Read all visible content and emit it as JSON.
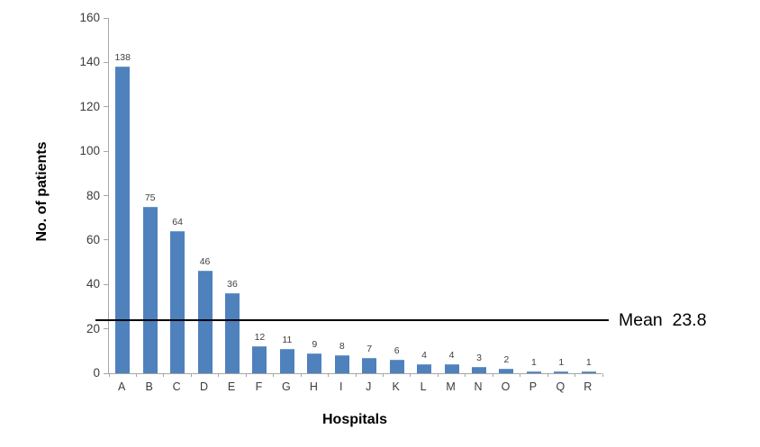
{
  "chart_data": {
    "type": "bar",
    "title": "",
    "xlabel": "Hospitals",
    "ylabel": "No. of patients",
    "categories": [
      "A",
      "B",
      "C",
      "D",
      "E",
      "F",
      "G",
      "H",
      "I",
      "J",
      "K",
      "L",
      "M",
      "N",
      "O",
      "P",
      "Q",
      "R"
    ],
    "values": [
      138,
      75,
      64,
      46,
      36,
      12,
      11,
      9,
      8,
      7,
      6,
      4,
      4,
      3,
      2,
      1,
      1,
      1
    ],
    "ylim": [
      0,
      160
    ],
    "yticks": [
      0,
      20,
      40,
      60,
      80,
      100,
      120,
      140,
      160
    ],
    "grid": false,
    "legend": "none",
    "bar_color": "#4f81bd",
    "axis_color": "#a6a6a6",
    "value_label_color": "#404040",
    "mean_line": {
      "value": 23.8,
      "label": "Mean  23.8",
      "color": "#000000"
    }
  }
}
